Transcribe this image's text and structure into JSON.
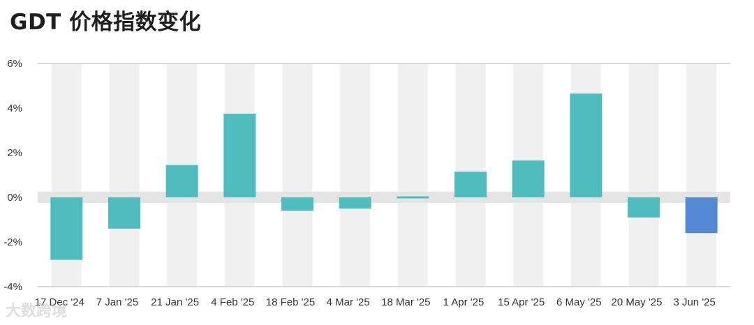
{
  "title": "GDT 价格指数变化",
  "watermark": "大数跨境",
  "chart_data": {
    "type": "bar",
    "title": "GDT 价格指数变化",
    "categories": [
      "17 Dec '24",
      "7 Jan '25",
      "21 Jan '25",
      "4 Feb '25",
      "18 Feb '25",
      "4 Mar '25",
      "18 Mar '25",
      "1 Apr '25",
      "15 Apr '25",
      "6 May '25",
      "20 May '25",
      "3 Jun '25"
    ],
    "values": [
      -2.8,
      -1.4,
      1.45,
      3.75,
      -0.6,
      -0.5,
      -0.05,
      1.15,
      1.65,
      4.65,
      -0.9,
      -1.6
    ],
    "ylim": [
      -4,
      6
    ],
    "yticks": [
      -4,
      -2,
      0,
      2,
      4,
      6
    ],
    "ytick_labels": [
      "-4%",
      "-2%",
      "0%",
      "2%",
      "4%",
      "6%"
    ],
    "colors": {
      "bar": "#4fbcbd",
      "highlight_bar": "#5288d4",
      "column_band": "#f0f0f0",
      "zero_band": "#e4e4e4",
      "gridline": "#d9d9d9"
    },
    "highlight_index": 11
  }
}
